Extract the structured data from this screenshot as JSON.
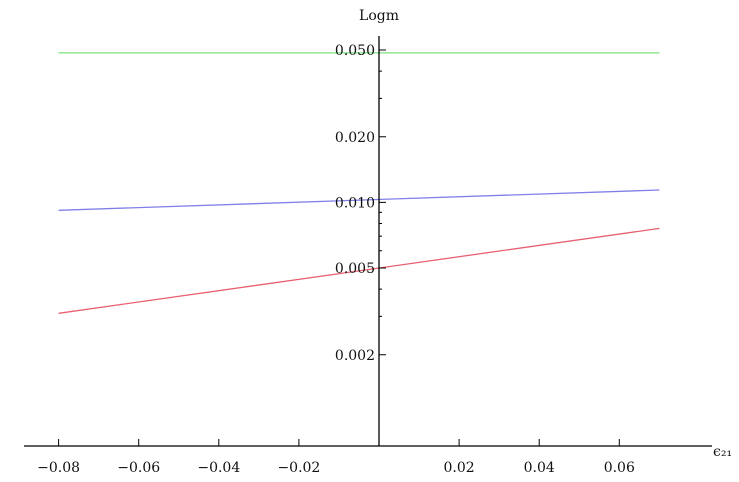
{
  "chart_data": {
    "type": "line",
    "title": "",
    "xlabel": "ϵ₂₁",
    "ylabel": "Logm",
    "yscale": "log",
    "xlim": [
      -0.08,
      0.07
    ],
    "ylim": [
      0.00155,
      0.052
    ],
    "grid": false,
    "x_ticks": [
      {
        "value": -0.08,
        "label": "−0.08"
      },
      {
        "value": -0.06,
        "label": "−0.06"
      },
      {
        "value": -0.04,
        "label": "−0.04"
      },
      {
        "value": -0.02,
        "label": "−0.02"
      },
      {
        "value": 0.02,
        "label": "0.02"
      },
      {
        "value": 0.04,
        "label": "0.04"
      },
      {
        "value": 0.06,
        "label": "0.06"
      }
    ],
    "y_ticks": [
      {
        "value": 0.002,
        "label": "0.002"
      },
      {
        "value": 0.005,
        "label": "0.005"
      },
      {
        "value": 0.01,
        "label": "0.010"
      },
      {
        "value": 0.02,
        "label": "0.020"
      },
      {
        "value": 0.05,
        "label": "0.050"
      }
    ],
    "series": [
      {
        "color": "#7fe07f",
        "x": [
          -0.08,
          0.07
        ],
        "y": [
          0.0485,
          0.0485
        ]
      },
      {
        "color": "#8080e8",
        "x": [
          -0.08,
          0.07
        ],
        "y": [
          0.0092,
          0.0114
        ]
      },
      {
        "color": "#e86070",
        "x": [
          -0.08,
          0.07
        ],
        "y": [
          0.0031,
          0.0076
        ]
      }
    ]
  }
}
